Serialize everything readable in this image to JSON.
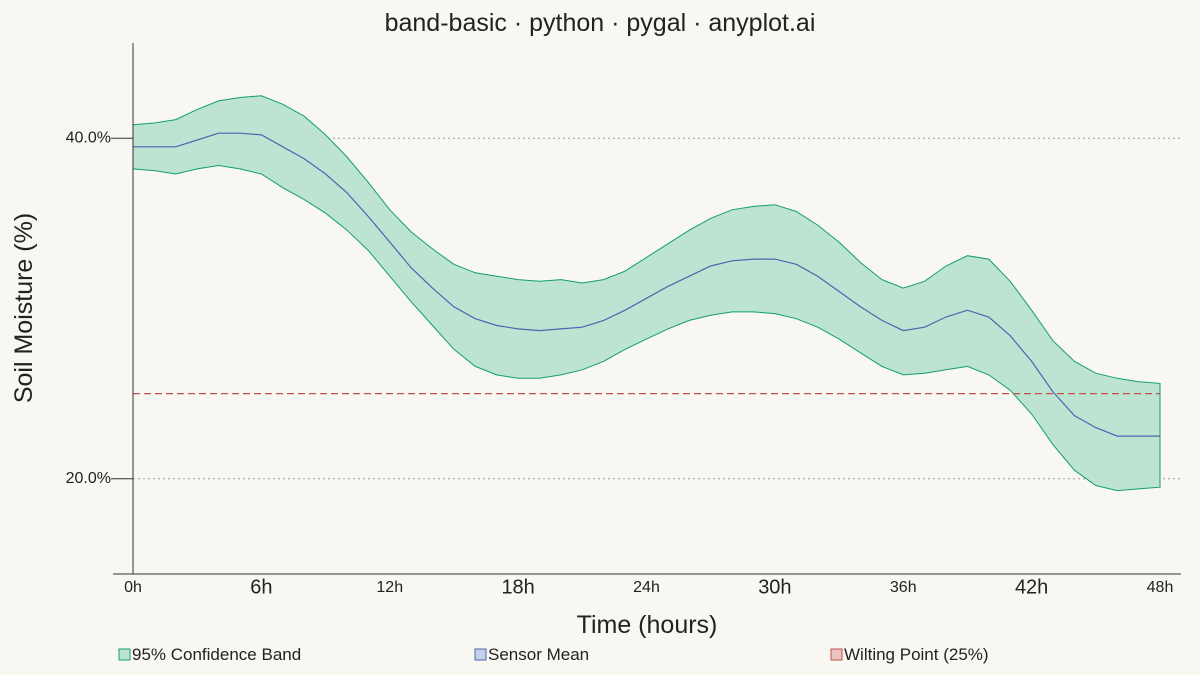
{
  "chart_data": {
    "type": "area",
    "title": "band-basic · python · pygal · anyplot.ai",
    "xlabel": "Time (hours)",
    "ylabel": "Soil Moisture (%)",
    "xlim": [
      0,
      48
    ],
    "ylim": [
      14.4,
      45.6
    ],
    "x_ticks": [
      {
        "value": 0,
        "label": "0h",
        "major": false
      },
      {
        "value": 6,
        "label": "6h",
        "major": true
      },
      {
        "value": 12,
        "label": "12h",
        "major": false
      },
      {
        "value": 18,
        "label": "18h",
        "major": true
      },
      {
        "value": 24,
        "label": "24h",
        "major": false
      },
      {
        "value": 30,
        "label": "30h",
        "major": true
      },
      {
        "value": 36,
        "label": "36h",
        "major": false
      },
      {
        "value": 42,
        "label": "42h",
        "major": true
      },
      {
        "value": 48,
        "label": "48h",
        "major": false
      }
    ],
    "y_ticks": [
      {
        "value": 20,
        "label": "20.0%"
      },
      {
        "value": 40,
        "label": "40.0%"
      }
    ],
    "grid": "horizontal-dotted",
    "legend_position": "bottom",
    "x": [
      0,
      1,
      2,
      3,
      4,
      5,
      6,
      7,
      8,
      9,
      10,
      11,
      12,
      13,
      14,
      15,
      16,
      17,
      18,
      19,
      20,
      21,
      22,
      23,
      24,
      25,
      26,
      27,
      28,
      29,
      30,
      31,
      32,
      33,
      34,
      35,
      36,
      37,
      38,
      39,
      40,
      41,
      42,
      43,
      44,
      45,
      46,
      47,
      48
    ],
    "series": [
      {
        "name": "95% Confidence Band",
        "color": "#129e6e",
        "fill": "#bde4d2",
        "upper": [
          40.8,
          40.9,
          41.1,
          41.7,
          42.2,
          42.4,
          42.5,
          42.0,
          41.3,
          40.2,
          38.9,
          37.4,
          35.8,
          34.5,
          33.5,
          32.6,
          32.1,
          31.9,
          31.7,
          31.6,
          31.7,
          31.5,
          31.7,
          32.2,
          33.0,
          33.8,
          34.6,
          35.3,
          35.8,
          36.0,
          36.1,
          35.7,
          34.9,
          33.9,
          32.7,
          31.7,
          31.2,
          31.6,
          32.5,
          33.1,
          32.9,
          31.6,
          29.9,
          28.1,
          26.9,
          26.2,
          25.9,
          25.7,
          25.6
        ],
        "lower": [
          38.2,
          38.1,
          37.9,
          38.2,
          38.4,
          38.2,
          37.9,
          37.1,
          36.4,
          35.6,
          34.6,
          33.4,
          31.9,
          30.4,
          29.0,
          27.6,
          26.6,
          26.1,
          25.9,
          25.9,
          26.1,
          26.4,
          26.9,
          27.6,
          28.2,
          28.8,
          29.3,
          29.6,
          29.8,
          29.8,
          29.7,
          29.4,
          28.9,
          28.2,
          27.4,
          26.6,
          26.1,
          26.2,
          26.4,
          26.6,
          26.1,
          25.2,
          23.8,
          22.0,
          20.5,
          19.6,
          19.3,
          19.4,
          19.5
        ]
      },
      {
        "name": "Sensor Mean",
        "color": "#4a66b0",
        "values": [
          39.5,
          39.5,
          39.5,
          39.9,
          40.3,
          40.3,
          40.2,
          39.5,
          38.8,
          37.9,
          36.8,
          35.4,
          33.9,
          32.4,
          31.2,
          30.1,
          29.4,
          29.0,
          28.8,
          28.7,
          28.8,
          28.9,
          29.3,
          29.9,
          30.6,
          31.3,
          31.9,
          32.5,
          32.8,
          32.9,
          32.9,
          32.6,
          31.9,
          31.0,
          30.1,
          29.3,
          28.7,
          28.9,
          29.5,
          29.9,
          29.5,
          28.4,
          26.9,
          25.1,
          23.7,
          23.0,
          22.5,
          22.5,
          22.5
        ]
      },
      {
        "name": "Wilting Point (25%)",
        "color": "#c0504d",
        "constant": 25
      }
    ]
  }
}
